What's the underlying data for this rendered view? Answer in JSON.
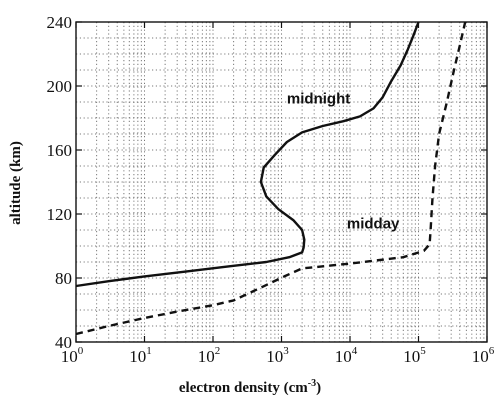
{
  "chart_data": {
    "type": "line",
    "title": "",
    "xlabel": "electron density (cm",
    "xlabel_sup": "-3",
    "xlabel_close": ")",
    "ylabel": "altitude (km)",
    "x_scale": "log",
    "xlim": [
      1,
      1000000
    ],
    "ylim": [
      40,
      240
    ],
    "grid": true,
    "legend": "none",
    "x_ticks": [
      {
        "base": "10",
        "exp": "0",
        "value": 1
      },
      {
        "base": "10",
        "exp": "1",
        "value": 10
      },
      {
        "base": "10",
        "exp": "2",
        "value": 100
      },
      {
        "base": "10",
        "exp": "3",
        "value": 1000
      },
      {
        "base": "10",
        "exp": "4",
        "value": 10000
      },
      {
        "base": "10",
        "exp": "5",
        "value": 100000
      },
      {
        "base": "10",
        "exp": "6",
        "value": 1000000
      }
    ],
    "y_ticks": [
      "40",
      "80",
      "120",
      "160",
      "200",
      "240"
    ],
    "annotations": [
      {
        "text": "midnight",
        "x": 1200,
        "y": 189
      },
      {
        "text": "midday",
        "x": 9000,
        "y": 111
      }
    ],
    "series": [
      {
        "style": "solid",
        "color": "#111111",
        "points": [
          {
            "x": 1,
            "y": 75
          },
          {
            "x": 3,
            "y": 78
          },
          {
            "x": 10,
            "y": 81
          },
          {
            "x": 40,
            "y": 84
          },
          {
            "x": 150,
            "y": 87
          },
          {
            "x": 600,
            "y": 90
          },
          {
            "x": 1300,
            "y": 93
          },
          {
            "x": 2000,
            "y": 96
          },
          {
            "x": 2100,
            "y": 99
          },
          {
            "x": 2150,
            "y": 104
          },
          {
            "x": 2000,
            "y": 110
          },
          {
            "x": 1500,
            "y": 116
          },
          {
            "x": 900,
            "y": 123
          },
          {
            "x": 600,
            "y": 131
          },
          {
            "x": 500,
            "y": 140
          },
          {
            "x": 550,
            "y": 149
          },
          {
            "x": 800,
            "y": 157
          },
          {
            "x": 1200,
            "y": 165
          },
          {
            "x": 2000,
            "y": 171
          },
          {
            "x": 4000,
            "y": 175
          },
          {
            "x": 8000,
            "y": 178
          },
          {
            "x": 14000,
            "y": 181
          },
          {
            "x": 22000,
            "y": 186
          },
          {
            "x": 30000,
            "y": 193
          },
          {
            "x": 40000,
            "y": 203
          },
          {
            "x": 55000,
            "y": 213
          },
          {
            "x": 70000,
            "y": 223
          },
          {
            "x": 85000,
            "y": 232
          },
          {
            "x": 100000,
            "y": 240
          }
        ]
      },
      {
        "style": "dashed",
        "color": "#111111",
        "points": [
          {
            "x": 1,
            "y": 45
          },
          {
            "x": 3,
            "y": 50
          },
          {
            "x": 10,
            "y": 55
          },
          {
            "x": 30,
            "y": 59
          },
          {
            "x": 100,
            "y": 63
          },
          {
            "x": 200,
            "y": 66
          },
          {
            "x": 500,
            "y": 74
          },
          {
            "x": 1100,
            "y": 81
          },
          {
            "x": 2000,
            "y": 86
          },
          {
            "x": 10000,
            "y": 89
          },
          {
            "x": 60000,
            "y": 93
          },
          {
            "x": 120000,
            "y": 97
          },
          {
            "x": 145000,
            "y": 101
          },
          {
            "x": 150000,
            "y": 110
          },
          {
            "x": 160000,
            "y": 130
          },
          {
            "x": 175000,
            "y": 150
          },
          {
            "x": 200000,
            "y": 170
          },
          {
            "x": 260000,
            "y": 190
          },
          {
            "x": 330000,
            "y": 210
          },
          {
            "x": 400000,
            "y": 225
          },
          {
            "x": 480000,
            "y": 240
          }
        ]
      }
    ]
  }
}
